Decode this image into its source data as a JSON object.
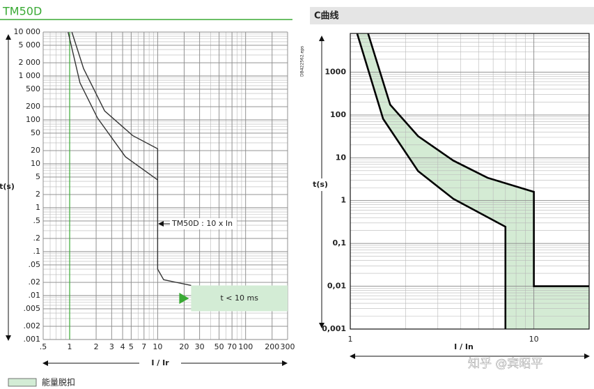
{
  "chart_data": [
    {
      "type": "line",
      "title": "TM50D",
      "xlabel": "I / Ir",
      "ylabel": "t(s)",
      "log_x": true,
      "log_y": true,
      "grid": true,
      "xlim": [
        0.5,
        300
      ],
      "ylim": [
        0.001,
        10000
      ],
      "xticks": [
        {
          "value": 0.5,
          "label": ".5"
        },
        1,
        2,
        3,
        4,
        5,
        7,
        10,
        20,
        30,
        50,
        70,
        100,
        200,
        300
      ],
      "yticks": [
        {
          "value": 0.001,
          "label": ".001"
        },
        {
          "value": 0.002,
          "label": ".002"
        },
        {
          "value": 0.005,
          "label": ".005"
        },
        {
          "value": 0.01,
          "label": ".01"
        },
        {
          "value": 0.02,
          "label": ".02"
        },
        {
          "value": 0.05,
          "label": ".05"
        },
        {
          "value": 0.1,
          "label": ".1"
        },
        {
          "value": 0.2,
          "label": ".2"
        },
        {
          "value": 0.5,
          "label": ".5"
        },
        1,
        2,
        5,
        10,
        20,
        50,
        100,
        200,
        500,
        {
          "value": 1000,
          "label": "1 000"
        },
        {
          "value": 2000,
          "label": "2 000"
        },
        {
          "value": 5000,
          "label": "5 000"
        },
        {
          "value": 10000,
          "label": "10 000"
        }
      ],
      "highlight_x": {
        "value": 1,
        "color": "#3aaa35"
      },
      "series": [
        {
          "color": "#333333",
          "x": [
            1.06,
            1.44,
            2.5,
            5.2,
            10,
            10,
            11.7,
            24
          ],
          "values": [
            10000,
            1470,
            160,
            44,
            22,
            0.04,
            0.023,
            0.017
          ]
        },
        {
          "color": "#333333",
          "x": [
            0.96,
            1.31,
            2.07,
            4.3,
            10
          ],
          "values": [
            10000,
            700,
            111,
            14.5,
            4.3
          ]
        }
      ],
      "region": {
        "xlim": [
          24,
          300
        ],
        "ylim": [
          0.0044,
          0.017
        ],
        "color": "#d3ecd5"
      },
      "annotations": [
        "TM50D : 10 x In",
        "t < 10 ms"
      ],
      "side_text": "DB422562.eps"
    },
    {
      "type": "line",
      "title": "C曲线",
      "xlabel": "I / In",
      "ylabel": "t(s)",
      "log_x": true,
      "log_y": true,
      "grid": true,
      "xlim": [
        1,
        20
      ],
      "ylim": [
        0.001,
        8000
      ],
      "xticks": [
        1,
        10
      ],
      "yticks": [
        {
          "value": 0.001,
          "label": "0,001"
        },
        {
          "value": 0.01,
          "label": "0,01"
        },
        {
          "value": 0.1,
          "label": "0,1"
        },
        1,
        10,
        100,
        1000
      ],
      "series": [
        {
          "color": "#000000",
          "x": [
            1.25,
            1.65,
            2.34,
            3.64,
            5.6,
            10,
            10,
            20
          ],
          "values": [
            8000,
            173,
            32,
            8.6,
            3.4,
            1.6,
            0.01,
            0.01
          ]
        },
        {
          "color": "#000000",
          "x": [
            1.09,
            1.51,
            2.34,
            3.64,
            7,
            7
          ],
          "values": [
            8000,
            81,
            4.9,
            1.1,
            0.245,
            0.001
          ]
        }
      ],
      "fill_color": "#d4ebd4"
    }
  ],
  "legend": {
    "label": "能量脱扣",
    "color": "#d3ecd5"
  },
  "watermark": "知乎 @宾昭平"
}
